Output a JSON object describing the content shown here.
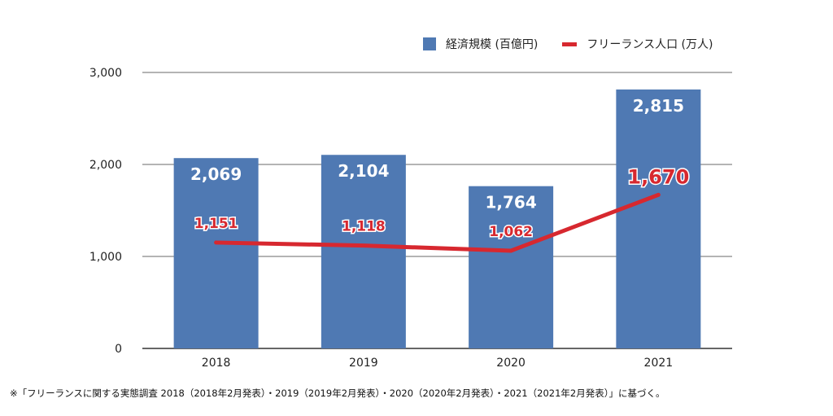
{
  "chart_data": {
    "type": "bar",
    "categories": [
      "2018",
      "2019",
      "2020",
      "2021"
    ],
    "series": [
      {
        "name": "経済規模 (百億円)",
        "type": "bar",
        "values": [
          2069,
          2104,
          1764,
          2815
        ],
        "labels": [
          "2,069",
          "2,104",
          "1,764",
          "2,815"
        ],
        "color": "#4f79b3"
      },
      {
        "name": "フリーランス人口 (万人)",
        "type": "line",
        "values": [
          1151,
          1118,
          1062,
          1670
        ],
        "labels": [
          "1,151",
          "1,118",
          "1,062",
          "1,670"
        ],
        "color": "#d7282f"
      }
    ],
    "yticks": [
      "0",
      "1,000",
      "2,000",
      "3,000"
    ],
    "ytick_values": [
      0,
      1000,
      2000,
      3000
    ],
    "ylim": [
      0,
      3000
    ],
    "grid": true,
    "legend_position": "top-right"
  },
  "footnote": "※「フリーランスに関する実態調査 2018（2018年2月発表）・2019（2019年2月発表）・2020（2020年2月発表）・2021（2021年2月発表）」に基づく。"
}
